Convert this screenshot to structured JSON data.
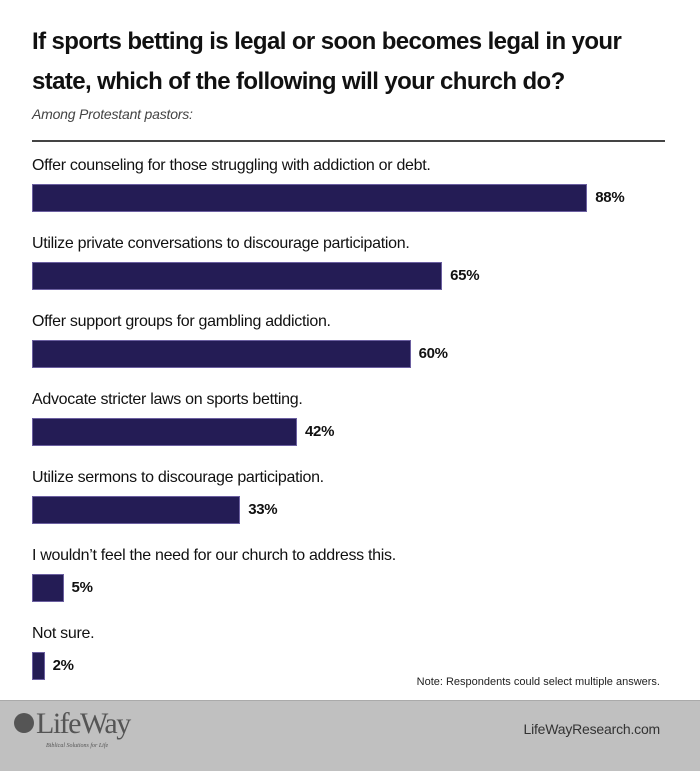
{
  "chart_data": {
    "type": "bar",
    "orientation": "horizontal",
    "title": "If sports betting is legal or soon becomes legal in your state, which of the following will your church do?",
    "subtitle": "Among Protestant pastors:",
    "categories": [
      "Offer counseling for those struggling with addiction or debt.",
      "Utilize private conversations to discourage participation.",
      "Offer support groups for gambling addiction.",
      "Advocate stricter laws on sports betting.",
      "Utilize sermons to discourage participation.",
      "I wouldn’t feel the need for our church to address this.",
      "Not sure."
    ],
    "values": [
      88,
      65,
      60,
      42,
      33,
      5,
      2
    ],
    "value_labels": [
      "88%",
      "65%",
      "60%",
      "42%",
      "33%",
      "5%",
      "2%"
    ],
    "unit": "%",
    "xlim": [
      0,
      100
    ],
    "bar_color": "#241c55",
    "note": "Note: Respondents could select multiple answers."
  },
  "footer": {
    "logo_text": "LifeWay",
    "logo_tagline": "Biblical Solutions for Life",
    "website": "LifeWayResearch.com"
  }
}
